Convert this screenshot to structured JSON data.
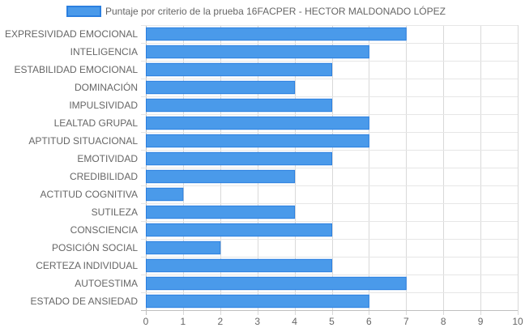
{
  "chart_data": {
    "type": "bar",
    "orientation": "horizontal",
    "title": "",
    "xlabel": "",
    "ylabel": "",
    "xlim": [
      0,
      10
    ],
    "x_ticks": [
      0,
      1,
      2,
      3,
      4,
      5,
      6,
      7,
      8,
      9,
      10
    ],
    "grid": true,
    "legend_position": "top",
    "categories": [
      "EXPRESIVIDAD EMOCIONAL",
      "INTELIGENCIA",
      "ESTABILIDAD EMOCIONAL",
      "DOMINACIÓN",
      "IMPULSIVIDAD",
      "LEALTAD GRUPAL",
      "APTITUD SITUACIONAL",
      "EMOTIVIDAD",
      "CREDIBILIDAD",
      "ACTITUD COGNITIVA",
      "SUTILEZA",
      "CONSCIENCIA",
      "POSICIÓN SOCIAL",
      "CERTEZA INDIVIDUAL",
      "AUTOESTIMA",
      "ESTADO DE ANSIEDAD"
    ],
    "series": [
      {
        "name": "Puntaje por criterio de la prueba 16FACPER - HECTOR MALDONADO LÓPEZ",
        "color": "#4a9aea",
        "border_color": "#2b7fe0",
        "values": [
          7,
          6,
          5,
          4,
          5,
          6,
          6,
          5,
          4,
          1,
          4,
          5,
          2,
          5,
          7,
          6
        ]
      }
    ]
  }
}
